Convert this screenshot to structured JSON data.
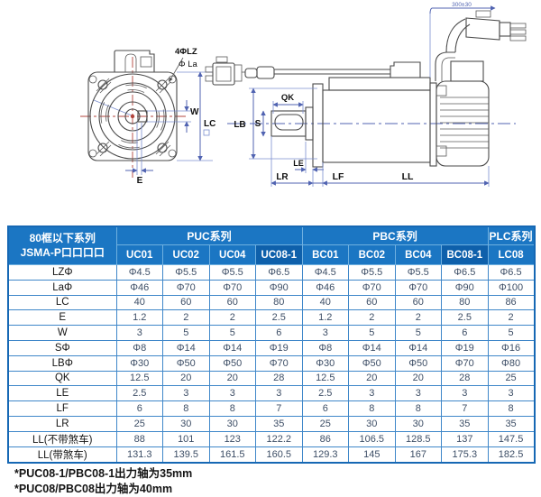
{
  "diagram": {
    "labels": {
      "mount_holes": "4ΦLZ",
      "flange_boss": "Φ La",
      "keyway_width": "W",
      "flange_size": "LC",
      "keyway_offset": "E",
      "key_length": "QK",
      "pilot_diameter": "LB",
      "shaft_diameter": "S",
      "shoulder_length": "LE",
      "shaft_length": "LR",
      "flange_thickness": "LF",
      "body_length": "LL",
      "cable_length": "300±30"
    }
  },
  "table": {
    "corner_header": {
      "line1": "80框以下系列",
      "line2": "JSMA-P口口口口"
    },
    "groups": [
      {
        "label": "PUC系列",
        "span": 4
      },
      {
        "label": "PBC系列",
        "span": 4
      },
      {
        "label": "PLC系列",
        "span": 1
      }
    ],
    "columns": [
      "UC01",
      "UC02",
      "UC04",
      "UC08-1",
      "BC01",
      "BC02",
      "BC04",
      "BC08-1",
      "LC08"
    ],
    "highlight_columns": [
      3,
      7
    ],
    "rows": [
      {
        "label": "LZΦ",
        "values": [
          "Φ4.5",
          "Φ5.5",
          "Φ5.5",
          "Φ6.5",
          "Φ4.5",
          "Φ5.5",
          "Φ5.5",
          "Φ6.5",
          "Φ6.5"
        ]
      },
      {
        "label": "LaΦ",
        "values": [
          "Φ46",
          "Φ70",
          "Φ70",
          "Φ90",
          "Φ46",
          "Φ70",
          "Φ70",
          "Φ90",
          "Φ100"
        ]
      },
      {
        "label": "LC",
        "values": [
          "40",
          "60",
          "60",
          "80",
          "40",
          "60",
          "60",
          "80",
          "86"
        ]
      },
      {
        "label": "E",
        "values": [
          "1.2",
          "2",
          "2",
          "2.5",
          "1.2",
          "2",
          "2",
          "2.5",
          "2"
        ]
      },
      {
        "label": "W",
        "values": [
          "3",
          "5",
          "5",
          "6",
          "3",
          "5",
          "5",
          "6",
          "5"
        ]
      },
      {
        "label": "SΦ",
        "values": [
          "Φ8",
          "Φ14",
          "Φ14",
          "Φ19",
          "Φ8",
          "Φ14",
          "Φ14",
          "Φ19",
          "Φ16"
        ]
      },
      {
        "label": "LBΦ",
        "values": [
          "Φ30",
          "Φ50",
          "Φ50",
          "Φ70",
          "Φ30",
          "Φ50",
          "Φ50",
          "Φ70",
          "Φ80"
        ]
      },
      {
        "label": "QK",
        "values": [
          "12.5",
          "20",
          "20",
          "28",
          "12.5",
          "20",
          "20",
          "28",
          "25"
        ]
      },
      {
        "label": "LE",
        "values": [
          "2.5",
          "3",
          "3",
          "3",
          "2.5",
          "3",
          "3",
          "3",
          "3"
        ]
      },
      {
        "label": "LF",
        "values": [
          "6",
          "8",
          "8",
          "7",
          "6",
          "8",
          "8",
          "7",
          "8"
        ]
      },
      {
        "label": "LR",
        "values": [
          "25",
          "30",
          "30",
          "35",
          "25",
          "30",
          "30",
          "35",
          "35"
        ]
      },
      {
        "label": "LL(不带煞车)",
        "values": [
          "88",
          "101",
          "123",
          "122.2",
          "86",
          "106.5",
          "128.5",
          "137",
          "147.5"
        ]
      },
      {
        "label": "LL(带煞车)",
        "values": [
          "131.3",
          "139.5",
          "161.5",
          "160.5",
          "129.3",
          "145",
          "167",
          "175.3",
          "182.5"
        ]
      }
    ]
  },
  "footnotes": [
    "*PUC08-1/PBC08-1出力轴为35mm",
    "*PUC08/PBC08出力轴为40mm"
  ],
  "colors": {
    "header_blue": "#1b76c3",
    "header_blue_dark": "#0e60ab",
    "grid_blue": "#3f87c9",
    "value_text": "#3d4e66",
    "dimension_blue": "#5063b1",
    "centerline_red": "#b3443c"
  }
}
